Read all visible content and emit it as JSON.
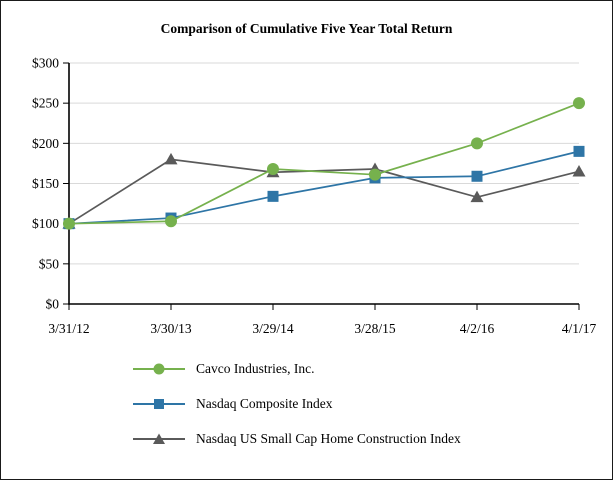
{
  "window": {
    "background": "#ffffff",
    "border_color": "#1a1a1a"
  },
  "chart_data": {
    "type": "line",
    "title": "Comparison of Cumulative Five Year Total Return",
    "categories": [
      "3/31/12",
      "3/30/13",
      "3/29/14",
      "3/28/15",
      "4/2/16",
      "4/1/17"
    ],
    "series": [
      {
        "name": "Cavco Industries, Inc.",
        "marker": "circle",
        "color": "#76B14D",
        "values": [
          100,
          103,
          168,
          161,
          200,
          250
        ]
      },
      {
        "name": "Nasdaq Composite Index",
        "marker": "square",
        "color": "#2E75A6",
        "values": [
          100,
          107,
          134,
          157,
          159,
          190
        ]
      },
      {
        "name": "Nasdaq US Small Cap Home Construction Index",
        "marker": "triangle",
        "color": "#5A5A5A",
        "values": [
          100,
          180,
          164,
          168,
          133,
          165
        ]
      }
    ],
    "ylim": [
      0,
      300
    ],
    "ytick_step": 50,
    "ytick_labels": [
      "$0",
      "$50",
      "$100",
      "$150",
      "$200",
      "$250",
      "$300"
    ],
    "xlabel": "",
    "ylabel": "",
    "grid": true,
    "gridline_color": "#D9D9D9",
    "axis_color": "#000000",
    "legend_position": "bottom-left"
  }
}
